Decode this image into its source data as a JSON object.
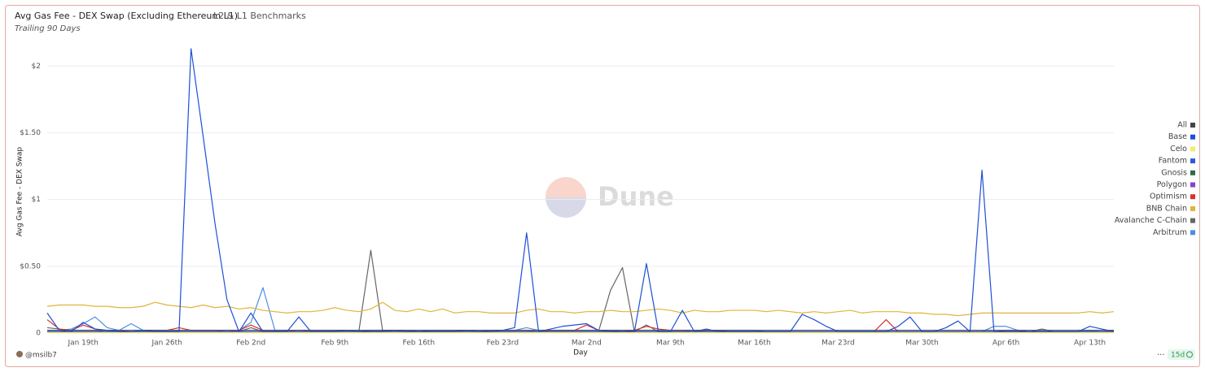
{
  "chart_data": {
    "type": "line",
    "title": "Avg Gas Fee - DEX Swap (Excluding Ethereum L1)",
    "subtitle": "L2 & L1 Benchmarks",
    "note": "Trailing 90 Days",
    "y_label": "Avg Gas Fee - DEX Swap",
    "x_label": "Day",
    "watermark": "Dune",
    "author": "@msilb7",
    "refresh": "15d",
    "grid": true,
    "legend_position": "right",
    "ylim": [
      0,
      2.16
    ],
    "yticks": [
      0,
      {
        "value": 0.5,
        "label": "$0.50"
      },
      {
        "value": 1,
        "label": "$1"
      },
      {
        "value": 1.5,
        "label": "$1.50"
      },
      {
        "value": 2,
        "label": "$2"
      }
    ],
    "categories": [
      null,
      null,
      null,
      "Jan 19th",
      null,
      null,
      null,
      null,
      null,
      null,
      "Jan 26th",
      null,
      null,
      null,
      null,
      null,
      null,
      "Feb 2nd",
      null,
      null,
      null,
      null,
      null,
      null,
      "Feb 9th",
      null,
      null,
      null,
      null,
      null,
      null,
      "Feb 16th",
      null,
      null,
      null,
      null,
      null,
      null,
      "Feb 23rd",
      null,
      null,
      null,
      null,
      null,
      null,
      "Mar 2nd",
      null,
      null,
      null,
      null,
      null,
      null,
      "Mar 9th",
      null,
      null,
      null,
      null,
      null,
      null,
      "Mar 16th",
      null,
      null,
      null,
      null,
      null,
      null,
      "Mar 23rd",
      null,
      null,
      null,
      null,
      null,
      null,
      "Mar 30th",
      null,
      null,
      null,
      null,
      null,
      null,
      "Apr 6th",
      null,
      null,
      null,
      null,
      null,
      null,
      "Apr 13th",
      null,
      null
    ],
    "series": [
      {
        "name": "All",
        "color": "#444444",
        "values": [
          0.02,
          0.02,
          0.02,
          0.02,
          0.02,
          0.02,
          0.02,
          0.02,
          0.02,
          0.02,
          0.02,
          0.02,
          0.02,
          0.02,
          0.02,
          0.02,
          0.02,
          0.02,
          0.02,
          0.02,
          0.02,
          0.02,
          0.02,
          0.02,
          0.02,
          0.02,
          0.02,
          0.02,
          0.02,
          0.02,
          0.02,
          0.02,
          0.02,
          0.02,
          0.02,
          0.02,
          0.02,
          0.02,
          0.02,
          0.02,
          0.02,
          0.02,
          0.02,
          0.02,
          0.02,
          0.02,
          0.02,
          0.02,
          0.02,
          0.02,
          0.02,
          0.02,
          0.02,
          0.02,
          0.02,
          0.02,
          0.02,
          0.02,
          0.02,
          0.02,
          0.02,
          0.02,
          0.02,
          0.02,
          0.02,
          0.02,
          0.02,
          0.02,
          0.02,
          0.02,
          0.02,
          0.02,
          0.02,
          0.02,
          0.02,
          0.02,
          0.02,
          0.02,
          0.02,
          0.02,
          0.02,
          0.02,
          0.02,
          0.02,
          0.02,
          0.02,
          0.02,
          0.02,
          0.02,
          0.02
        ]
      },
      {
        "name": "Base",
        "color": "#1f4fd8",
        "values": [
          0.15,
          0.02,
          0.01,
          0.08,
          0.03,
          0.02,
          0.01,
          0.01,
          0.02,
          0.01,
          0.01,
          0.01,
          2.13,
          1.48,
          0.82,
          0.25,
          0.01,
          0.15,
          0.01,
          0.01,
          0.01,
          0.12,
          0.01,
          0.01,
          0.01,
          0.02,
          0.01,
          0.01,
          0.01,
          0.02,
          0.01,
          0.01,
          0.01,
          0.01,
          0.01,
          0.02,
          0.01,
          0.01,
          0.02,
          0.04,
          0.75,
          0.01,
          0.03,
          0.05,
          0.06,
          0.07,
          0.02,
          0.01,
          0.01,
          0.01,
          0.52,
          0.01,
          0.01,
          0.17,
          0.01,
          0.03,
          0.01,
          0.01,
          0.01,
          0.01,
          0.01,
          0.01,
          0.01,
          0.14,
          0.1,
          0.05,
          0.01,
          0.01,
          0.01,
          0.01,
          0.01,
          0.05,
          0.12,
          0.01,
          0.01,
          0.04,
          0.09,
          0.01,
          1.22,
          0.01,
          0.01,
          0.01,
          0.01,
          0.01,
          0.01,
          0.01,
          0.01,
          0.05,
          0.03,
          0.01
        ]
      },
      {
        "name": "Celo",
        "color": "#f3ec6a",
        "values": [
          0.003,
          0.003,
          0.003,
          0.003,
          0.003,
          0.003,
          0.003,
          0.003,
          0.003,
          0.003,
          0.003,
          0.003,
          0.003,
          0.003,
          0.003,
          0.003,
          0.003,
          0.003,
          0.003,
          0.003,
          0.003,
          0.003,
          0.003,
          0.003,
          0.003,
          0.003,
          0.003,
          0.003,
          0.003,
          0.003,
          0.003,
          0.003,
          0.003,
          0.003,
          0.003,
          0.003,
          0.003,
          0.003,
          0.003,
          0.003,
          0.003,
          0.003,
          0.003,
          0.003,
          0.003,
          0.003,
          0.003,
          0.003,
          0.003,
          0.003,
          0.003,
          0.003,
          0.003,
          0.003,
          0.003,
          0.003,
          0.003,
          0.003,
          0.003,
          0.003,
          0.003,
          0.003,
          0.003,
          0.003,
          0.003,
          0.003,
          0.003,
          0.003,
          0.003,
          0.003,
          0.003,
          0.003,
          0.003,
          0.003,
          0.003,
          0.003,
          0.003,
          0.003,
          0.003,
          0.003,
          0.003,
          0.003,
          0.003,
          0.003,
          0.003,
          0.003,
          0.003,
          0.003,
          0.003,
          0.003
        ]
      },
      {
        "name": "Fantom",
        "color": "#2a5be0",
        "values": [
          0.01,
          0.01,
          0.01,
          0.01,
          0.01,
          0.01,
          0.01,
          0.01,
          0.01,
          0.01,
          0.01,
          0.01,
          0.01,
          0.01,
          0.01,
          0.01,
          0.01,
          0.01,
          0.01,
          0.01,
          0.01,
          0.01,
          0.01,
          0.01,
          0.01,
          0.01,
          0.01,
          0.01,
          0.01,
          0.01,
          0.01,
          0.01,
          0.01,
          0.01,
          0.01,
          0.01,
          0.01,
          0.01,
          0.01,
          0.01,
          0.01,
          0.01,
          0.01,
          0.01,
          0.01,
          0.01,
          0.01,
          0.01,
          0.01,
          0.01,
          0.01,
          0.01,
          0.01,
          0.01,
          0.01,
          0.01,
          0.01,
          0.01,
          0.01,
          0.01,
          0.01,
          0.01,
          0.01,
          0.01,
          0.01,
          0.01,
          0.01,
          0.01,
          0.01,
          0.01,
          0.01,
          0.01,
          0.01,
          0.01,
          0.01,
          0.01,
          0.01,
          0.01,
          0.01,
          0.01,
          0.01,
          0.01,
          0.01,
          0.01,
          0.01,
          0.01,
          0.01,
          0.01,
          0.01,
          0.01
        ]
      },
      {
        "name": "Gnosis",
        "color": "#2f6b4a",
        "values": [
          0.005,
          0.005,
          0.005,
          0.005,
          0.005,
          0.005,
          0.005,
          0.005,
          0.005,
          0.005,
          0.005,
          0.005,
          0.005,
          0.005,
          0.005,
          0.005,
          0.005,
          0.005,
          0.005,
          0.005,
          0.005,
          0.005,
          0.005,
          0.005,
          0.005,
          0.005,
          0.005,
          0.005,
          0.005,
          0.005,
          0.005,
          0.005,
          0.005,
          0.005,
          0.005,
          0.005,
          0.005,
          0.005,
          0.005,
          0.005,
          0.005,
          0.005,
          0.005,
          0.005,
          0.005,
          0.005,
          0.005,
          0.005,
          0.005,
          0.005,
          0.005,
          0.005,
          0.005,
          0.005,
          0.005,
          0.005,
          0.005,
          0.005,
          0.005,
          0.005,
          0.005,
          0.005,
          0.005,
          0.005,
          0.005,
          0.005,
          0.005,
          0.005,
          0.005,
          0.005,
          0.005,
          0.005,
          0.005,
          0.005,
          0.005,
          0.005,
          0.005,
          0.005,
          0.005,
          0.005,
          0.005,
          0.005,
          0.005,
          0.005,
          0.005,
          0.005,
          0.005,
          0.005,
          0.005,
          0.005
        ]
      },
      {
        "name": "Polygon",
        "color": "#8a3fd1",
        "values": [
          0.01,
          0.01,
          0.01,
          0.01,
          0.01,
          0.01,
          0.01,
          0.01,
          0.01,
          0.01,
          0.01,
          0.01,
          0.01,
          0.01,
          0.01,
          0.01,
          0.01,
          0.01,
          0.01,
          0.01,
          0.01,
          0.01,
          0.01,
          0.01,
          0.01,
          0.01,
          0.01,
          0.01,
          0.01,
          0.01,
          0.01,
          0.01,
          0.01,
          0.01,
          0.01,
          0.01,
          0.01,
          0.01,
          0.01,
          0.01,
          0.01,
          0.01,
          0.01,
          0.01,
          0.01,
          0.01,
          0.01,
          0.01,
          0.01,
          0.01,
          0.01,
          0.01,
          0.01,
          0.01,
          0.01,
          0.01,
          0.01,
          0.01,
          0.01,
          0.01,
          0.01,
          0.01,
          0.01,
          0.01,
          0.01,
          0.01,
          0.01,
          0.01,
          0.01,
          0.01,
          0.01,
          0.01,
          0.01,
          0.01,
          0.01,
          0.01,
          0.01,
          0.01,
          0.01,
          0.01,
          0.01,
          0.01,
          0.01,
          0.01,
          0.01,
          0.01,
          0.01,
          0.01,
          0.01,
          0.01
        ]
      },
      {
        "name": "Optimism",
        "color": "#d9302c",
        "values": [
          0.1,
          0.03,
          0.02,
          0.06,
          0.03,
          0.02,
          0.02,
          0.01,
          0.02,
          0.02,
          0.02,
          0.04,
          0.02,
          0.02,
          0.02,
          0.01,
          0.02,
          0.06,
          0.02,
          0.02,
          0.02,
          0.01,
          0.02,
          0.02,
          0.02,
          0.02,
          0.01,
          0.02,
          0.02,
          0.02,
          0.02,
          0.01,
          0.02,
          0.02,
          0.02,
          0.02,
          0.01,
          0.02,
          0.02,
          0.02,
          0.02,
          0.01,
          0.02,
          0.02,
          0.02,
          0.06,
          0.02,
          0.02,
          0.01,
          0.02,
          0.05,
          0.03,
          0.02,
          0.02,
          0.01,
          0.02,
          0.02,
          0.01,
          0.01,
          0.01,
          0.01,
          0.01,
          0.01,
          0.01,
          0.01,
          0.01,
          0.01,
          0.01,
          0.01,
          0.01,
          0.1,
          0.01,
          0.01,
          0.01,
          0.01,
          0.01,
          0.01,
          0.01,
          0.01,
          0.01,
          0.02,
          0.02,
          0.01,
          0.01,
          0.01,
          0.01,
          0.01,
          0.01,
          0.01,
          0.02
        ]
      },
      {
        "name": "BNB Chain",
        "color": "#e0b43a",
        "values": [
          0.2,
          0.21,
          0.21,
          0.21,
          0.2,
          0.2,
          0.19,
          0.19,
          0.2,
          0.23,
          0.21,
          0.2,
          0.19,
          0.21,
          0.19,
          0.2,
          0.18,
          0.19,
          0.17,
          0.16,
          0.15,
          0.16,
          0.16,
          0.17,
          0.19,
          0.17,
          0.16,
          0.18,
          0.23,
          0.17,
          0.16,
          0.18,
          0.16,
          0.18,
          0.15,
          0.16,
          0.16,
          0.15,
          0.15,
          0.15,
          0.17,
          0.18,
          0.16,
          0.16,
          0.15,
          0.16,
          0.16,
          0.17,
          0.16,
          0.16,
          0.17,
          0.18,
          0.17,
          0.15,
          0.17,
          0.16,
          0.16,
          0.17,
          0.17,
          0.17,
          0.16,
          0.17,
          0.16,
          0.15,
          0.16,
          0.15,
          0.16,
          0.17,
          0.15,
          0.16,
          0.16,
          0.16,
          0.15,
          0.15,
          0.14,
          0.14,
          0.13,
          0.14,
          0.15,
          0.15,
          0.15,
          0.15,
          0.15,
          0.15,
          0.15,
          0.15,
          0.15,
          0.16,
          0.15,
          0.16
        ]
      },
      {
        "name": "Avalanche C-Chain",
        "color": "#666666",
        "values": [
          0.04,
          0.03,
          0.02,
          0.02,
          0.02,
          0.01,
          0.01,
          0.01,
          0.01,
          0.01,
          0.01,
          0.01,
          0.01,
          0.01,
          0.01,
          0.01,
          0.01,
          0.04,
          0.01,
          0.01,
          0.01,
          0.01,
          0.01,
          0.01,
          0.01,
          0.01,
          0.01,
          0.62,
          0.01,
          0.01,
          0.01,
          0.01,
          0.01,
          0.01,
          0.01,
          0.01,
          0.01,
          0.01,
          0.01,
          0.01,
          0.01,
          0.01,
          0.01,
          0.01,
          0.01,
          0.01,
          0.01,
          0.32,
          0.49,
          0.01,
          0.06,
          0.01,
          0.01,
          0.01,
          0.01,
          0.01,
          0.01,
          0.01,
          0.01,
          0.01,
          0.01,
          0.01,
          0.01,
          0.01,
          0.01,
          0.01,
          0.01,
          0.01,
          0.01,
          0.01,
          0.01,
          0.01,
          0.01,
          0.01,
          0.01,
          0.01,
          0.01,
          0.01,
          0.01,
          0.01,
          0.01,
          0.01,
          0.01,
          0.03,
          0.01,
          0.01,
          0.01,
          0.01,
          0.01,
          0.01
        ]
      },
      {
        "name": "Arbitrum",
        "color": "#4a90e2",
        "values": [
          0.02,
          0.02,
          0.03,
          0.07,
          0.12,
          0.04,
          0.02,
          0.07,
          0.02,
          0.02,
          0.02,
          0.02,
          0.02,
          0.02,
          0.02,
          0.02,
          0.02,
          0.08,
          0.34,
          0.02,
          0.02,
          0.02,
          0.02,
          0.02,
          0.02,
          0.02,
          0.02,
          0.02,
          0.02,
          0.02,
          0.02,
          0.02,
          0.02,
          0.02,
          0.02,
          0.02,
          0.02,
          0.02,
          0.02,
          0.02,
          0.04,
          0.02,
          0.02,
          0.02,
          0.02,
          0.02,
          0.02,
          0.02,
          0.02,
          0.02,
          0.02,
          0.02,
          0.02,
          0.02,
          0.02,
          0.02,
          0.02,
          0.02,
          0.02,
          0.02,
          0.01,
          0.01,
          0.01,
          0.01,
          0.01,
          0.01,
          0.01,
          0.01,
          0.01,
          0.01,
          0.01,
          0.01,
          0.01,
          0.01,
          0.01,
          0.01,
          0.01,
          0.01,
          0.01,
          0.05,
          0.05,
          0.02,
          0.01,
          0.01,
          0.01,
          0.01,
          0.01,
          0.02,
          0.01,
          0.01
        ]
      }
    ]
  }
}
